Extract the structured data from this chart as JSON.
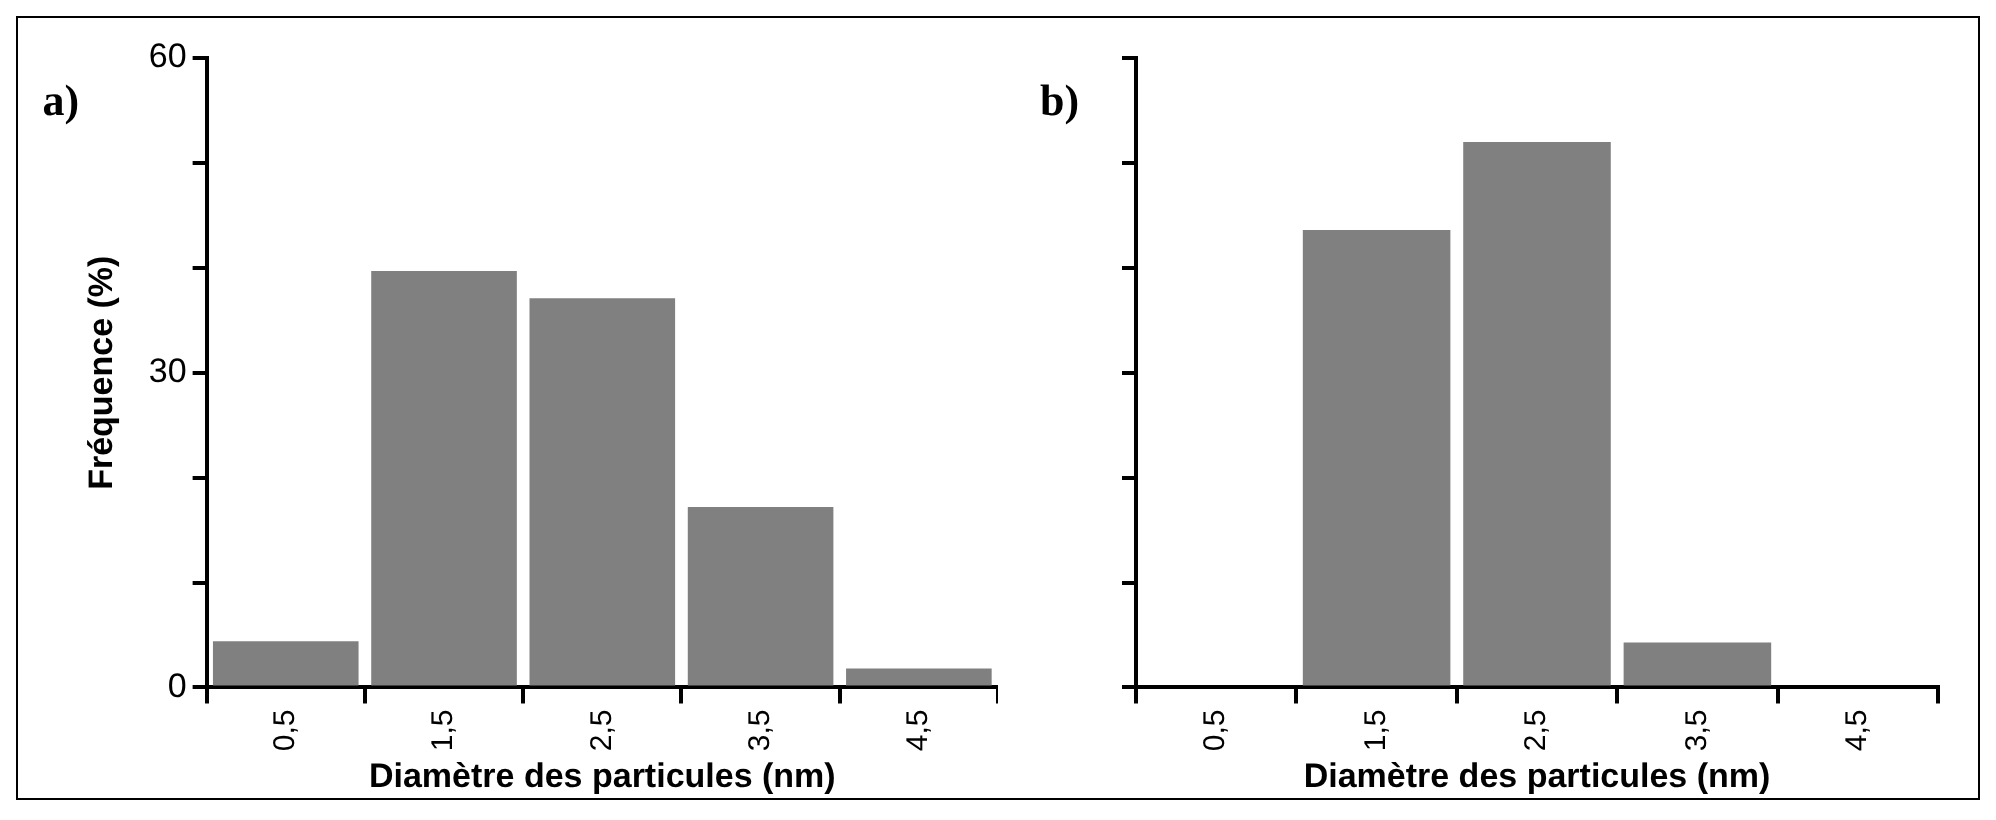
{
  "chart_data": [
    {
      "type": "bar",
      "categories": [
        "0,5",
        "1,5",
        "2,5",
        "3,5",
        "4,5"
      ],
      "values": [
        4.4,
        39.7,
        37.1,
        17.2,
        1.8
      ],
      "color": "#808080",
      "xlabel": "Diamètre des particules (nm)",
      "ylabel": "Fréquence (%)",
      "ylim": [
        0,
        60
      ],
      "yticks": [
        0,
        {
          "value": 10,
          "label": null
        },
        {
          "value": 20,
          "label": null
        },
        30,
        {
          "value": 40,
          "label": null
        },
        {
          "value": 50,
          "label": null
        },
        60
      ],
      "grid": false,
      "annotations": [
        "a)"
      ]
    },
    {
      "type": "bar",
      "categories": [
        "0,5",
        "1,5",
        "2,5",
        "3,5",
        "4,5"
      ],
      "values": [
        0,
        43.6,
        52,
        4.3,
        0
      ],
      "color": "#808080",
      "xlabel": "Diamètre des particules (nm)",
      "ylim": [
        0,
        60
      ],
      "yticks": [
        {
          "value": 0,
          "label": null
        },
        {
          "value": 10,
          "label": null
        },
        {
          "value": 20,
          "label": null
        },
        {
          "value": 30,
          "label": null
        },
        {
          "value": 40,
          "label": null
        },
        {
          "value": 50,
          "label": null
        },
        {
          "value": 60,
          "label": null
        }
      ],
      "grid": false,
      "tick_labels": "x",
      "annotations": [
        "b)"
      ]
    }
  ]
}
